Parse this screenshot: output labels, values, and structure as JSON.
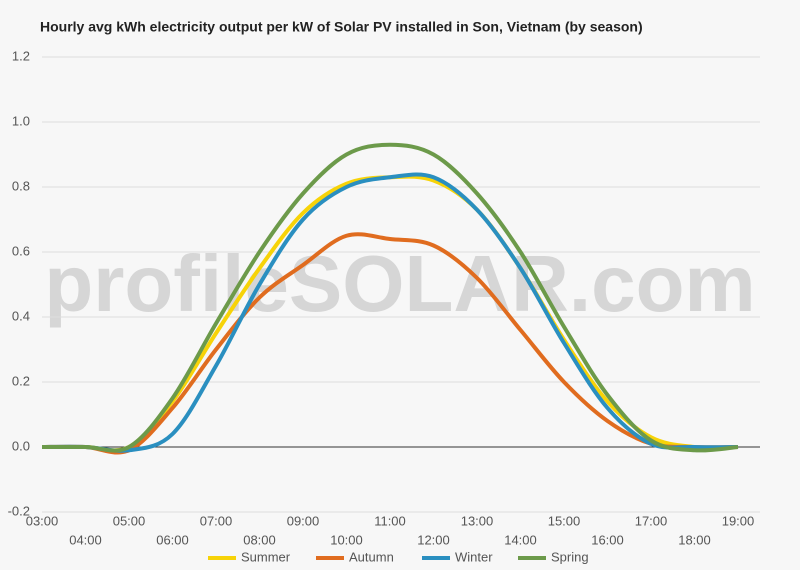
{
  "chart_data": {
    "type": "line",
    "title": "Hourly avg kWh electricity output per kW of Solar PV installed in Son, Vietnam (by season)",
    "watermark": "profileSOLAR.com",
    "categories": [
      "03:00",
      "04:00",
      "05:00",
      "06:00",
      "07:00",
      "08:00",
      "09:00",
      "10:00",
      "11:00",
      "12:00",
      "13:00",
      "14:00",
      "15:00",
      "16:00",
      "17:00",
      "18:00",
      "19:00"
    ],
    "series": [
      {
        "name": "Summer",
        "color": "#f7d308",
        "values": [
          0,
          0,
          0,
          0.14,
          0.35,
          0.55,
          0.72,
          0.81,
          0.83,
          0.82,
          0.73,
          0.55,
          0.33,
          0.14,
          0.03,
          0,
          0
        ]
      },
      {
        "name": "Autumn",
        "color": "#e06c1f",
        "values": [
          0,
          0,
          -0.01,
          0.12,
          0.3,
          0.46,
          0.56,
          0.65,
          0.64,
          0.62,
          0.52,
          0.36,
          0.2,
          0.08,
          0.01,
          0,
          0
        ]
      },
      {
        "name": "Winter",
        "color": "#2a8fc0",
        "values": [
          0,
          0,
          -0.01,
          0.04,
          0.25,
          0.5,
          0.7,
          0.8,
          0.83,
          0.83,
          0.73,
          0.55,
          0.32,
          0.12,
          0.01,
          0,
          0
        ]
      },
      {
        "name": "Spring",
        "color": "#6c9a4a",
        "values": [
          0,
          0,
          0,
          0.15,
          0.38,
          0.6,
          0.78,
          0.9,
          0.93,
          0.9,
          0.78,
          0.6,
          0.37,
          0.16,
          0.02,
          -0.01,
          0
        ]
      }
    ],
    "ylim": [
      -0.2,
      1.2
    ],
    "yticks": [
      -0.2,
      {
        "value": 0,
        "label": "0.0"
      },
      0.2,
      0.4,
      0.6,
      0.8,
      {
        "value": 1,
        "label": "1.0"
      },
      1.2
    ],
    "grid": true,
    "legend": "bottom"
  }
}
